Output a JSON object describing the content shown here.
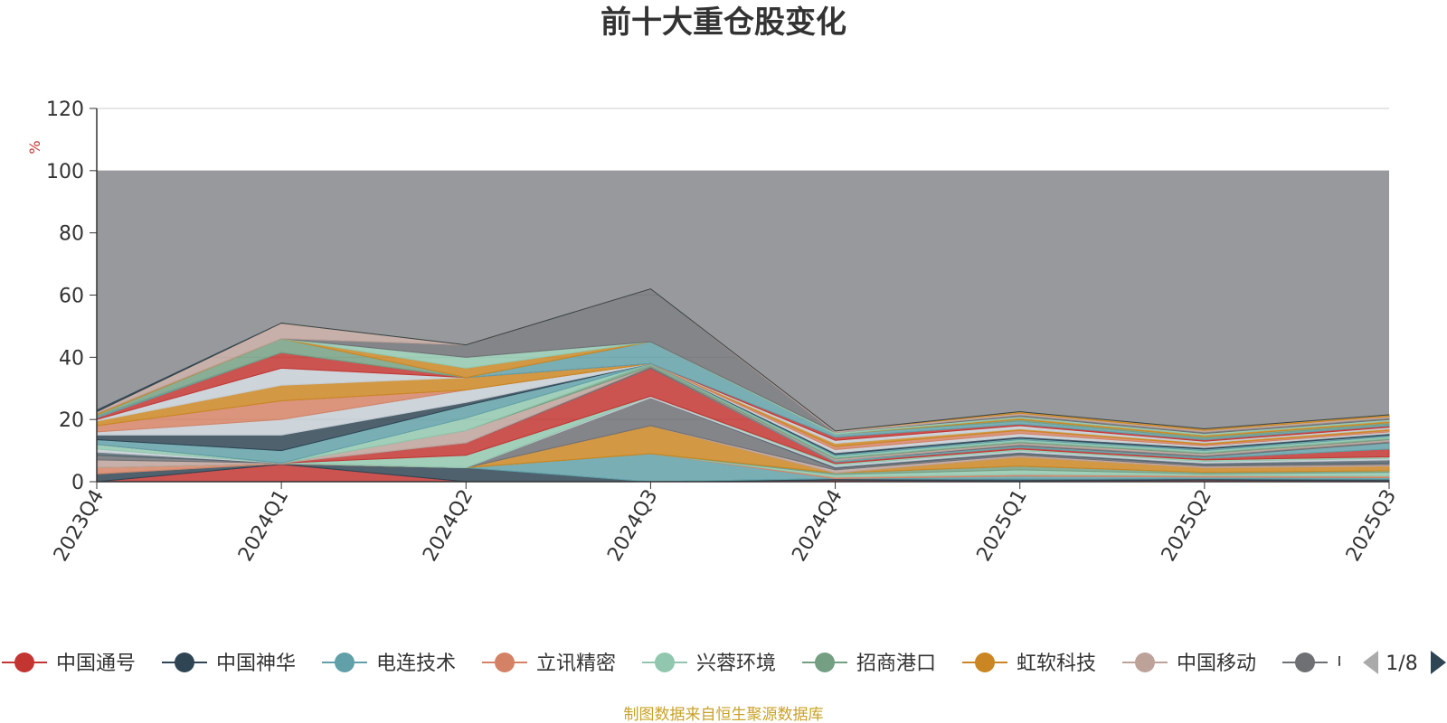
{
  "chart_data": {
    "type": "area",
    "title": "前十大重仓股变化",
    "ylabel": "%",
    "source_note": "制图数据来自恒生聚源数据库",
    "categories": [
      "2023Q4",
      "2024Q1",
      "2024Q2",
      "2024Q3",
      "2024Q4",
      "2025Q1",
      "2025Q2",
      "2025Q3"
    ],
    "ylim": [
      0,
      120
    ],
    "yticks": [
      0,
      20,
      40,
      60,
      80,
      100,
      120
    ],
    "grid": true,
    "stacked": true,
    "legend_position": "bottom",
    "legend_page": "1/8",
    "legend_visible_names": [
      "中国通号",
      "中国神华",
      "电连技术",
      "立讯精密",
      "兴蓉环境",
      "招商港口",
      "虹软科技",
      "中国移动"
    ],
    "legend_partial_name": "中",
    "series": [
      {
        "name": "中国通号",
        "color": "#c23531",
        "values": [
          0.0,
          5.6,
          0.0,
          0.0,
          0.5,
          0.3,
          0.5,
          0.3
        ]
      },
      {
        "name": "中国神华",
        "color": "#2f4554",
        "values": [
          2.5,
          0.2,
          4.5,
          0.0,
          0.5,
          0.5,
          0.5,
          0.5
        ]
      },
      {
        "name": "电连技术",
        "color": "#61a0a8",
        "values": [
          0.0,
          0.0,
          0.0,
          9.0,
          0.0,
          1.0,
          0.5,
          0.5
        ]
      },
      {
        "name": "立讯精密",
        "color": "#d48265",
        "values": [
          2.0,
          0.0,
          0.0,
          0.0,
          0.5,
          0.5,
          0.5,
          0.5
        ]
      },
      {
        "name": "兴蓉环境",
        "color": "#91c7ae",
        "values": [
          0.0,
          0.0,
          0.0,
          0.0,
          0.8,
          1.5,
          0.5,
          1.2
        ]
      },
      {
        "name": "招商港口",
        "color": "#749f83",
        "values": [
          0.0,
          0.0,
          0.0,
          0.0,
          0.5,
          1.2,
          0.5,
          0.5
        ]
      },
      {
        "name": "虹软科技",
        "color": "#ca8622",
        "values": [
          0.0,
          0.0,
          0.0,
          9.0,
          0.0,
          3.0,
          1.5,
          1.5
        ]
      },
      {
        "name": "中国移动",
        "color": "#bda29a",
        "values": [
          2.5,
          0.2,
          0.0,
          0.0,
          1.0,
          0.5,
          0.5,
          0.5
        ]
      },
      {
        "name": "",
        "color": "#6e7074",
        "values": [
          1.5,
          0.0,
          0.0,
          9.0,
          0.5,
          0.5,
          0.5,
          0.5
        ]
      },
      {
        "name": "",
        "color": "#546570",
        "values": [
          1.0,
          0.0,
          0.0,
          0.0,
          0.5,
          0.5,
          0.5,
          1.0
        ]
      },
      {
        "name": "",
        "color": "#c4ccd3",
        "values": [
          1.0,
          0.0,
          0.0,
          0.5,
          0.5,
          0.5,
          0.5,
          0.5
        ]
      },
      {
        "name": "",
        "color": "#91c7ae",
        "values": [
          1.5,
          0.0,
          4.0,
          0.0,
          0.5,
          0.5,
          0.5,
          0.5
        ]
      },
      {
        "name": "",
        "color": "#c23531",
        "values": [
          0.0,
          0.0,
          4.0,
          9.0,
          0.5,
          0.5,
          0.5,
          2.5
        ]
      },
      {
        "name": "",
        "color": "#61a0a8",
        "values": [
          0.0,
          0.0,
          0.0,
          0.0,
          0.5,
          0.5,
          0.5,
          2.0
        ]
      },
      {
        "name": "",
        "color": "#6e7074",
        "values": [
          0.0,
          0.0,
          0.0,
          0.5,
          0.0,
          0.5,
          0.5,
          0.5
        ]
      },
      {
        "name": "",
        "color": "#bda29a",
        "values": [
          0.0,
          0.0,
          4.0,
          0.0,
          0.5,
          0.5,
          0.5,
          0.5
        ]
      },
      {
        "name": "",
        "color": "#749f83",
        "values": [
          0.0,
          0.0,
          0.0,
          1.0,
          0.5,
          0.5,
          0.5,
          0.5
        ]
      },
      {
        "name": "",
        "color": "#91c7ae",
        "values": [
          0.0,
          0.0,
          4.0,
          0.0,
          0.5,
          0.5,
          0.5,
          0.5
        ]
      },
      {
        "name": "",
        "color": "#61a0a8",
        "values": [
          1.5,
          4.0,
          4.0,
          0.0,
          0.5,
          0.5,
          0.5,
          0.5
        ]
      },
      {
        "name": "",
        "color": "#2f4554",
        "values": [
          1.5,
          5.0,
          1.0,
          0.0,
          0.5,
          0.5,
          0.5,
          0.5
        ]
      },
      {
        "name": "",
        "color": "#c4ccd3",
        "values": [
          1.0,
          5.0,
          4.0,
          0.0,
          1.0,
          1.0,
          0.5,
          0.5
        ]
      },
      {
        "name": "",
        "color": "#d48265",
        "values": [
          2.0,
          6.0,
          0.0,
          0.0,
          1.0,
          1.0,
          0.5,
          0.5
        ]
      },
      {
        "name": "",
        "color": "#ca8622",
        "values": [
          1.5,
          5.0,
          4.0,
          0.0,
          1.0,
          0.5,
          0.5,
          0.5
        ]
      },
      {
        "name": "",
        "color": "#c4ccd3",
        "values": [
          0.5,
          5.5,
          0.0,
          0.0,
          1.0,
          1.0,
          0.5,
          0.5
        ]
      },
      {
        "name": "",
        "color": "#c23531",
        "values": [
          0.5,
          5.0,
          0.0,
          0.0,
          1.0,
          0.5,
          0.5,
          0.5
        ]
      },
      {
        "name": "",
        "color": "#61a0a8",
        "values": [
          0.5,
          0.0,
          0.0,
          7.0,
          1.0,
          1.0,
          0.5,
          0.5
        ]
      },
      {
        "name": "",
        "color": "#749f83",
        "values": [
          0.5,
          4.5,
          0.0,
          0.0,
          0.0,
          0.5,
          0.5,
          0.5
        ]
      },
      {
        "name": "",
        "color": "#ca8622",
        "values": [
          0.5,
          0.0,
          3.0,
          0.0,
          0.0,
          0.5,
          0.5,
          0.5
        ]
      },
      {
        "name": "",
        "color": "#91c7ae",
        "values": [
          0.0,
          0.0,
          3.5,
          0.0,
          0.5,
          0.5,
          0.5,
          0.5
        ]
      },
      {
        "name": "",
        "color": "#6e7074",
        "values": [
          0.0,
          0.0,
          4.0,
          17.0,
          0.0,
          0.5,
          0.5,
          0.5
        ]
      },
      {
        "name": "",
        "color": "#bda29a",
        "values": [
          0.5,
          5.0,
          0.0,
          0.0,
          0.5,
          0.5,
          0.5,
          0.5
        ]
      },
      {
        "name": "",
        "color": "#ca8622",
        "values": [
          0.0,
          0.0,
          0.0,
          0.0,
          0.0,
          0.5,
          0.5,
          0.5
        ]
      },
      {
        "name": "",
        "color": "#2f4554",
        "values": [
          0.5,
          0.0,
          0.0,
          0.0,
          0.0,
          0.0,
          0.0,
          0.0
        ]
      }
    ],
    "remainder": {
      "color": "#97999c",
      "to": 100
    }
  }
}
